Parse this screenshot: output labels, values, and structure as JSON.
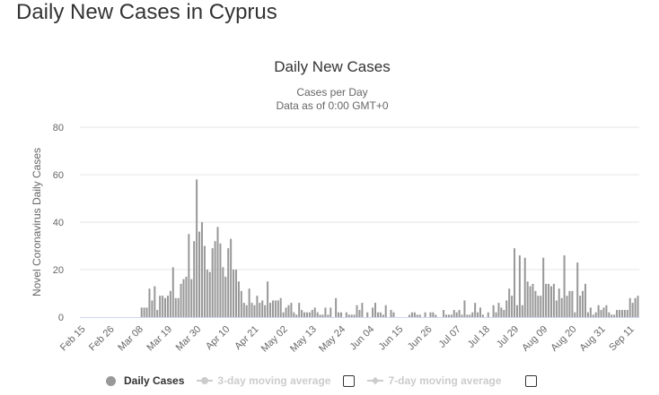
{
  "page_title": "Daily New Cases in Cyprus",
  "colors": {
    "bar": "#999999",
    "grid": "#e6e6e6",
    "axis": "#ccd6eb",
    "tick_label": "#666666"
  },
  "legend": {
    "daily": "Daily Cases",
    "avg3": "3-day moving average",
    "avg7": "7-day moving average"
  },
  "chart_data": {
    "type": "bar",
    "title": "Daily New Cases",
    "subtitle_1": "Cases per Day",
    "subtitle_2": "Data as of 0:00 GMT+0",
    "xlabel": "",
    "ylabel": "Novel Coronavirus Daily Cases",
    "ylim": [
      0,
      80
    ],
    "yticks": [
      0,
      20,
      40,
      60,
      80
    ],
    "start_date": "Feb 15",
    "tick_every_days": 11,
    "xtick_labels": [
      "Feb 15",
      "Feb 26",
      "Mar 08",
      "Mar 19",
      "Mar 30",
      "Apr 10",
      "Apr 21",
      "May 02",
      "May 13",
      "May 24",
      "Jun 04",
      "Jun 15",
      "Jun 26",
      "Jul 07",
      "Jul 18",
      "Jul 29",
      "Aug 09",
      "Aug 20",
      "Aug 31",
      "Sep 11"
    ],
    "values": [
      0,
      0,
      0,
      0,
      0,
      0,
      0,
      0,
      0,
      0,
      0,
      0,
      0,
      0,
      0,
      0,
      0,
      0,
      0,
      0,
      0,
      0,
      0,
      4,
      4,
      4,
      12,
      7,
      13,
      3,
      9,
      9,
      8,
      9,
      11,
      21,
      8,
      8,
      14,
      16,
      17,
      35,
      16,
      32,
      58,
      36,
      40,
      30,
      20,
      19,
      29,
      32,
      38,
      31,
      21,
      17,
      29,
      33,
      20,
      20,
      15,
      11,
      6,
      5,
      12,
      6,
      5,
      9,
      6,
      7,
      5,
      15,
      6,
      7,
      7,
      7,
      8,
      2,
      4,
      5,
      6,
      2,
      1,
      6,
      3,
      2,
      2,
      2,
      3,
      4,
      2,
      1,
      1,
      4,
      1,
      4,
      0,
      8,
      2,
      2,
      0,
      2,
      1,
      1,
      1,
      5,
      3,
      6,
      0,
      2,
      0,
      4,
      6,
      2,
      2,
      1,
      5,
      0,
      3,
      2,
      0,
      0,
      0,
      0,
      0,
      1,
      2,
      2,
      1,
      1,
      0,
      2,
      0,
      2,
      2,
      1,
      0,
      0,
      3,
      1,
      1,
      1,
      3,
      2,
      3,
      1,
      7,
      1,
      1,
      2,
      6,
      2,
      4,
      1,
      0,
      2,
      0,
      5,
      2,
      6,
      4,
      3,
      7,
      12,
      9,
      29,
      5,
      26,
      5,
      25,
      15,
      13,
      14,
      11,
      9,
      9,
      25,
      14,
      14,
      13,
      14,
      7,
      12,
      8,
      26,
      9,
      11,
      11,
      2,
      23,
      9,
      11,
      14,
      2,
      4,
      1,
      2,
      5,
      3,
      4,
      5,
      2,
      1,
      1,
      3,
      3,
      3,
      3,
      3,
      8,
      6,
      8,
      9
    ]
  }
}
